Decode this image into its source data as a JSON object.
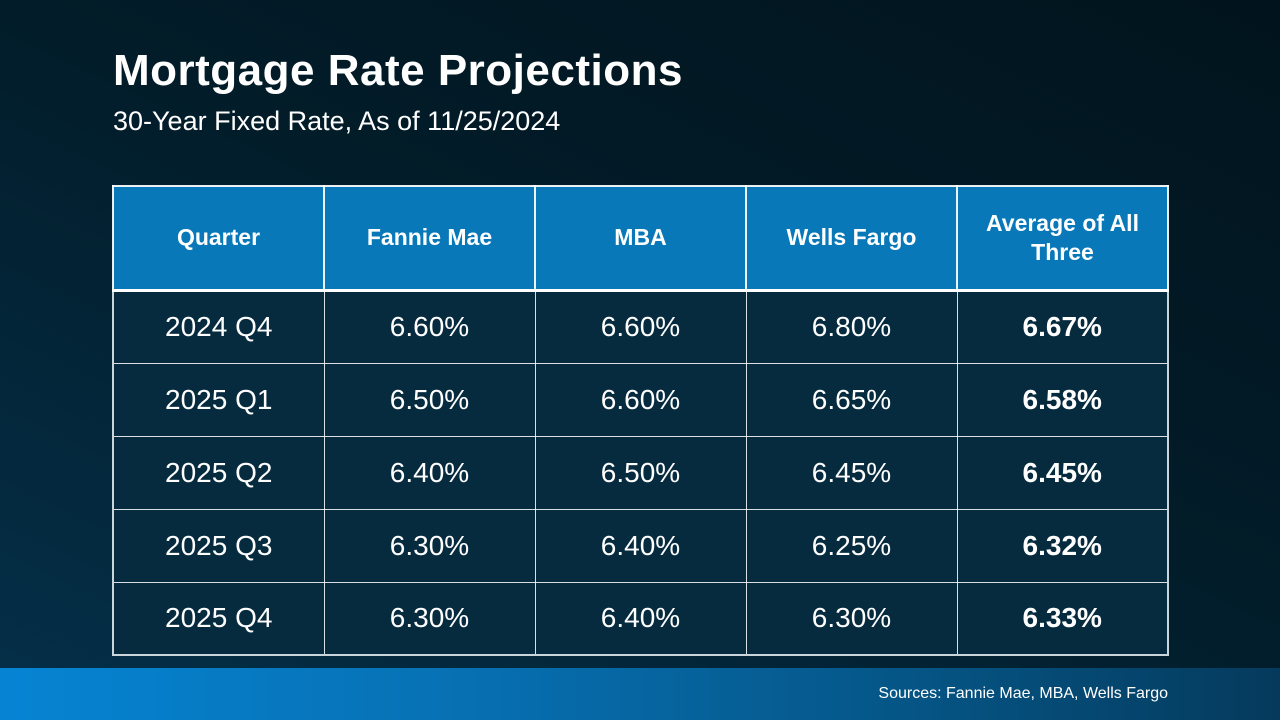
{
  "header": {
    "title": "Mortgage Rate Projections",
    "subtitle": "30-Year Fixed Rate, As of 11/25/2024"
  },
  "table": {
    "columns": [
      "Quarter",
      "Fannie Mae",
      "MBA",
      "Wells Fargo",
      "Average of All Three"
    ],
    "rows": [
      {
        "cells": [
          "2024 Q4",
          "6.60%",
          "6.60%",
          "6.80%",
          "6.67%"
        ]
      },
      {
        "cells": [
          "2025 Q1",
          "6.50%",
          "6.60%",
          "6.65%",
          "6.58%"
        ]
      },
      {
        "cells": [
          "2025 Q2",
          "6.40%",
          "6.50%",
          "6.45%",
          "6.45%"
        ]
      },
      {
        "cells": [
          "2025 Q3",
          "6.30%",
          "6.40%",
          "6.25%",
          "6.32%"
        ]
      },
      {
        "cells": [
          "2025 Q4",
          "6.30%",
          "6.40%",
          "6.30%",
          "6.33%"
        ]
      }
    ]
  },
  "footer": {
    "sources": "Sources: Fannie Mae, MBA, Wells Fargo"
  },
  "colors": {
    "page-top": "#01141d",
    "page-bottom": "#05304a",
    "table-header-bg": "#0878b8",
    "cell-bg": "#062b3f",
    "border-light": "#c9d4db",
    "footer-left": "#0684d3",
    "footer-right": "#053a5c",
    "text": "#ffffff"
  },
  "chart_data": {
    "type": "table",
    "title": "Mortgage Rate Projections",
    "subtitle": "30-Year Fixed Rate, As of 11/25/2024",
    "columns": [
      "Quarter",
      "Fannie Mae",
      "MBA",
      "Wells Fargo",
      "Average of All Three"
    ],
    "categories": [
      "2024 Q4",
      "2025 Q1",
      "2025 Q2",
      "2025 Q3",
      "2025 Q4"
    ],
    "series": [
      {
        "name": "Fannie Mae",
        "values": [
          6.6,
          6.5,
          6.4,
          6.3,
          6.3
        ]
      },
      {
        "name": "MBA",
        "values": [
          6.6,
          6.6,
          6.5,
          6.4,
          6.4
        ]
      },
      {
        "name": "Wells Fargo",
        "values": [
          6.8,
          6.65,
          6.45,
          6.25,
          6.3
        ]
      },
      {
        "name": "Average of All Three",
        "values": [
          6.67,
          6.58,
          6.45,
          6.32,
          6.33
        ]
      }
    ],
    "unit": "%",
    "notes": "Sources: Fannie Mae, MBA, Wells Fargo"
  }
}
